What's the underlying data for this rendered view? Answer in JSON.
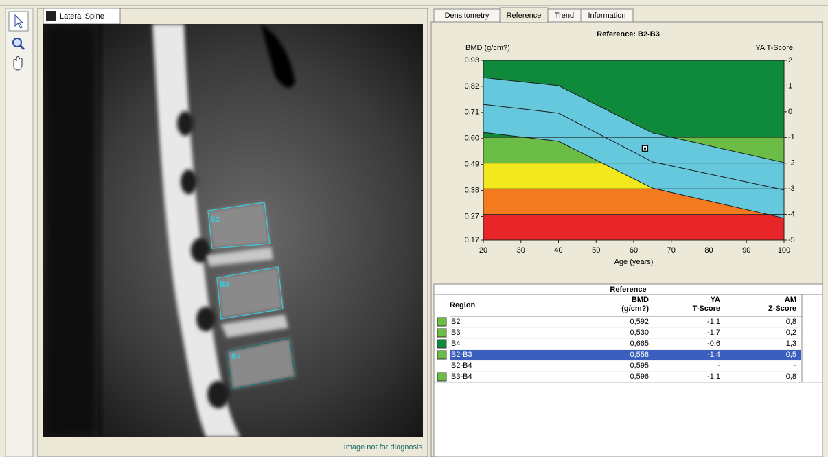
{
  "image_panel": {
    "tab": "Lateral Spine",
    "regions": [
      "B2",
      "B3",
      "B4"
    ],
    "footer": "Image not for diagnosis"
  },
  "tabs": [
    "Densitometry",
    "Reference",
    "Trend",
    "Information"
  ],
  "active_tab": "Reference",
  "chart_data": {
    "type": "reference-curve",
    "title": "Reference: B2-B3",
    "y_label": "BMD (g/cm?)",
    "y2_label": "YA T-Score",
    "x_label": "Age (years)",
    "xlim": [
      20,
      100
    ],
    "xticks": [
      20,
      30,
      40,
      50,
      60,
      70,
      80,
      90,
      100
    ],
    "ylim": [
      0.17,
      0.93
    ],
    "yticks": [
      {
        "value": 0.17,
        "label": "0,17"
      },
      {
        "value": 0.27,
        "label": "0,27"
      },
      {
        "value": 0.38,
        "label": "0,38"
      },
      {
        "value": 0.49,
        "label": "0,49"
      },
      {
        "value": 0.6,
        "label": "0,60"
      },
      {
        "value": 0.71,
        "label": "0,71"
      },
      {
        "value": 0.82,
        "label": "0,82"
      },
      {
        "value": 0.93,
        "label": "0,93"
      }
    ],
    "y2lim": [
      -5,
      2
    ],
    "y2ticks": [
      -5,
      -4,
      -3,
      -2,
      -1,
      0,
      1,
      2
    ],
    "bands": [
      {
        "from": -5,
        "to": -4,
        "color": "#e8262a",
        "axis": "y2"
      },
      {
        "from": -4,
        "to": -3,
        "color": "#f47a20",
        "axis": "y2"
      },
      {
        "from": -3,
        "to": -2,
        "color": "#f2e81e",
        "axis": "y2"
      },
      {
        "from": -2,
        "to": -1,
        "color": "#6cbd45",
        "axis": "y2"
      },
      {
        "from": -1,
        "to": 2,
        "color": "#0f8a3c",
        "axis": "y2"
      }
    ],
    "envelope_color": "#66c8dc",
    "x": [
      20,
      40,
      65,
      100
    ],
    "series": [
      {
        "color": "#1a1a1a",
        "values": [
          0.857,
          0.823,
          0.623,
          0.498
        ]
      },
      {
        "color": "#1a1a1a",
        "values": [
          0.744,
          0.707,
          0.501,
          0.382
        ]
      },
      {
        "color": "#1a1a1a",
        "values": [
          0.625,
          0.588,
          0.39,
          0.263
        ]
      }
    ],
    "point": {
      "x": 63,
      "y": 0.558
    }
  },
  "table": {
    "title": "Reference",
    "columns": [
      [
        "Region"
      ],
      [
        "BMD",
        "(g/cm?)"
      ],
      [
        "YA",
        "T-Score"
      ],
      [
        "AM",
        "Z-Score"
      ]
    ],
    "selected_row": "B2-B3",
    "rows": [
      {
        "swatch": "#6cbd45",
        "cells": [
          "B2",
          "0,592",
          "-1,1",
          "0,8"
        ]
      },
      {
        "swatch": "#6cbd45",
        "cells": [
          "B3",
          "0,530",
          "-1,7",
          "0,2"
        ]
      },
      {
        "swatch": "#0f8a3c",
        "cells": [
          "B4",
          "0,665",
          "-0,6",
          "1,3"
        ]
      },
      {
        "swatch": "#6cbd45",
        "cells": [
          "B2-B3",
          "0,558",
          "-1,4",
          "0,5"
        ]
      },
      {
        "swatch": null,
        "cells": [
          "B2-B4",
          "0,595",
          "-",
          "-"
        ]
      },
      {
        "swatch": "#6cbd45",
        "cells": [
          "B3-B4",
          "0,596",
          "-1,1",
          "0,8"
        ]
      }
    ]
  }
}
